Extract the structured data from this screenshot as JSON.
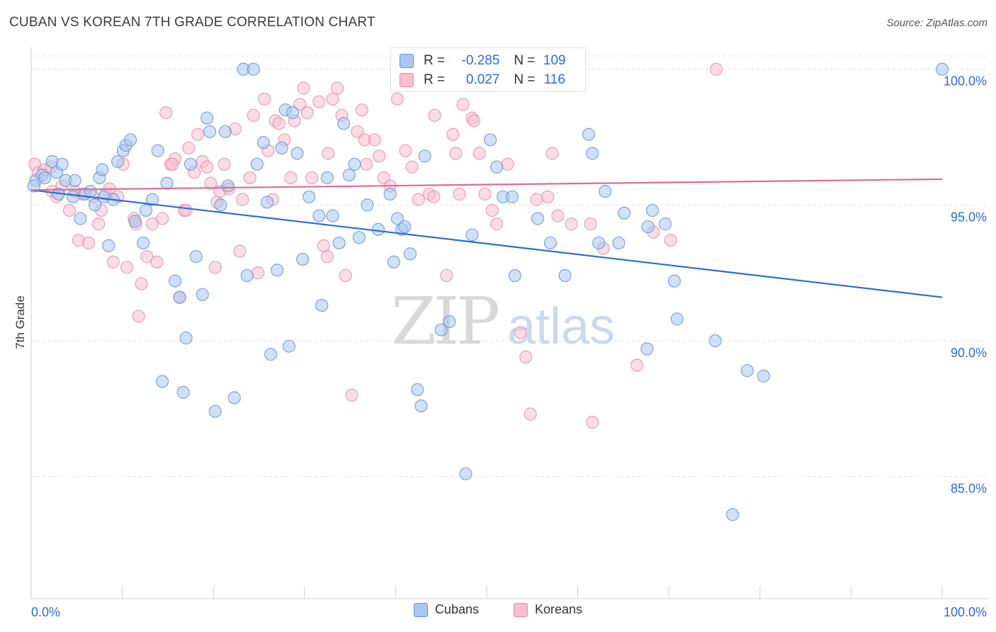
{
  "title": "CUBAN VS KOREAN 7TH GRADE CORRELATION CHART",
  "source": "Source: ZipAtlas.com",
  "watermark": {
    "zip": "ZIP",
    "atlas": "atlas"
  },
  "legend": {
    "rows": [
      {
        "r_label": "R =",
        "r_value": "-0.285",
        "n_label": "N =",
        "n_value": "109"
      },
      {
        "r_label": "R =",
        "r_value": "0.027",
        "n_label": "N =",
        "n_value": "116"
      }
    ]
  },
  "bottom_legend": {
    "cubans": "Cubans",
    "koreans": "Koreans"
  },
  "colors": {
    "cubans_fill": "#a9c7ef",
    "cubans_stroke": "#5b93dd",
    "cubans_line": "#2b6dd0",
    "koreans_fill": "#f6bfd0",
    "koreans_stroke": "#e88aa8",
    "koreans_line": "#e06b94",
    "axis_label": "#2b6dd0",
    "grid": "#e3e3e3"
  },
  "chart_data": {
    "type": "scatter",
    "title": "CUBAN VS KOREAN 7TH GRADE CORRELATION CHART",
    "xlabel": "",
    "ylabel": "7th Grade",
    "xlim": [
      0,
      100
    ],
    "ylim": [
      80.5,
      100.8
    ],
    "x_tick_labels": [
      "0.0%",
      "100.0%"
    ],
    "y_ticks": [
      85,
      90,
      95,
      100
    ],
    "y_tick_labels": [
      "85.0%",
      "90.0%",
      "95.0%",
      "100.0%"
    ],
    "grid": true,
    "legend_position": "top-center",
    "series": [
      {
        "name": "Cubans",
        "r": -0.285,
        "n": 109,
        "trend": {
          "x": [
            0,
            100
          ],
          "y": [
            95.55,
            91.6
          ]
        },
        "points": [
          [
            0.5,
            95.9
          ],
          [
            1.2,
            96.1
          ],
          [
            1.5,
            96.0
          ],
          [
            2.3,
            96.6
          ],
          [
            2.8,
            96.2
          ],
          [
            3.4,
            96.5
          ],
          [
            3.8,
            95.9
          ],
          [
            4.6,
            95.3
          ],
          [
            4.8,
            95.9
          ],
          [
            5.4,
            94.5
          ],
          [
            5.9,
            95.4
          ],
          [
            6.5,
            95.5
          ],
          [
            7.0,
            95.0
          ],
          [
            7.5,
            96.0
          ],
          [
            7.8,
            96.3
          ],
          [
            8.5,
            93.5
          ],
          [
            9.0,
            95.2
          ],
          [
            9.5,
            96.6
          ],
          [
            10.1,
            97.0
          ],
          [
            10.4,
            97.2
          ],
          [
            10.9,
            97.4
          ],
          [
            11.4,
            94.4
          ],
          [
            12.3,
            93.6
          ],
          [
            12.6,
            94.8
          ],
          [
            13.3,
            95.2
          ],
          [
            13.9,
            97.0
          ],
          [
            14.4,
            88.5
          ],
          [
            14.9,
            95.8
          ],
          [
            15.8,
            92.2
          ],
          [
            16.3,
            91.6
          ],
          [
            16.7,
            88.1
          ],
          [
            17.0,
            90.1
          ],
          [
            17.5,
            96.5
          ],
          [
            18.1,
            93.1
          ],
          [
            18.8,
            91.7
          ],
          [
            19.3,
            98.2
          ],
          [
            19.6,
            97.7
          ],
          [
            20.2,
            87.4
          ],
          [
            20.8,
            95.0
          ],
          [
            21.3,
            97.7
          ],
          [
            21.6,
            95.7
          ],
          [
            22.3,
            87.9
          ],
          [
            23.3,
            100.0
          ],
          [
            23.7,
            92.4
          ],
          [
            24.4,
            100.0
          ],
          [
            24.8,
            96.5
          ],
          [
            25.5,
            97.3
          ],
          [
            25.9,
            95.1
          ],
          [
            26.3,
            89.5
          ],
          [
            27.0,
            92.6
          ],
          [
            27.5,
            97.1
          ],
          [
            27.9,
            98.5
          ],
          [
            28.3,
            89.8
          ],
          [
            28.7,
            98.4
          ],
          [
            29.2,
            96.9
          ],
          [
            29.8,
            93.0
          ],
          [
            30.5,
            95.3
          ],
          [
            31.6,
            94.6
          ],
          [
            31.9,
            91.3
          ],
          [
            32.5,
            96.0
          ],
          [
            33.1,
            94.6
          ],
          [
            33.8,
            93.6
          ],
          [
            34.3,
            98.0
          ],
          [
            34.9,
            96.1
          ],
          [
            35.5,
            96.5
          ],
          [
            36.0,
            93.8
          ],
          [
            36.9,
            95.0
          ],
          [
            38.1,
            94.1
          ],
          [
            39.4,
            95.4
          ],
          [
            39.8,
            92.9
          ],
          [
            40.2,
            94.5
          ],
          [
            40.7,
            94.1
          ],
          [
            41.0,
            94.2
          ],
          [
            41.6,
            93.2
          ],
          [
            42.4,
            88.2
          ],
          [
            42.8,
            87.6
          ],
          [
            43.2,
            96.8
          ],
          [
            45.0,
            90.4
          ],
          [
            45.9,
            90.7
          ],
          [
            47.7,
            85.1
          ],
          [
            48.4,
            93.9
          ],
          [
            50.4,
            97.4
          ],
          [
            51.1,
            96.4
          ],
          [
            51.8,
            95.3
          ],
          [
            52.8,
            95.3
          ],
          [
            53.1,
            92.4
          ],
          [
            55.6,
            94.5
          ],
          [
            57.0,
            93.6
          ],
          [
            58.6,
            92.4
          ],
          [
            61.2,
            97.6
          ],
          [
            61.6,
            96.9
          ],
          [
            62.3,
            93.6
          ],
          [
            63.0,
            95.5
          ],
          [
            64.5,
            93.6
          ],
          [
            65.1,
            94.7
          ],
          [
            67.6,
            89.7
          ],
          [
            67.7,
            94.2
          ],
          [
            68.2,
            94.8
          ],
          [
            69.6,
            94.3
          ],
          [
            70.6,
            92.2
          ],
          [
            70.9,
            90.8
          ],
          [
            75.1,
            90.0
          ],
          [
            77.0,
            83.6
          ],
          [
            78.6,
            88.9
          ],
          [
            80.4,
            88.7
          ],
          [
            100.0,
            100.0
          ],
          [
            0.3,
            95.7
          ],
          [
            3.0,
            95.4
          ],
          [
            8.0,
            95.3
          ]
        ]
      },
      {
        "name": "Koreans",
        "r": 0.027,
        "n": 116,
        "trend": {
          "x": [
            0,
            100
          ],
          "y": [
            95.55,
            95.95
          ]
        },
        "points": [
          [
            0.4,
            96.5
          ],
          [
            0.8,
            96.2
          ],
          [
            1.5,
            96.3
          ],
          [
            2.3,
            95.5
          ],
          [
            2.8,
            95.3
          ],
          [
            3.4,
            95.7
          ],
          [
            4.2,
            94.8
          ],
          [
            4.8,
            95.5
          ],
          [
            5.2,
            93.7
          ],
          [
            5.6,
            95.4
          ],
          [
            6.3,
            93.6
          ],
          [
            6.8,
            95.3
          ],
          [
            7.4,
            94.3
          ],
          [
            7.7,
            94.8
          ],
          [
            8.2,
            95.4
          ],
          [
            8.6,
            95.6
          ],
          [
            9.0,
            92.9
          ],
          [
            9.5,
            95.3
          ],
          [
            10.1,
            96.5
          ],
          [
            10.5,
            92.7
          ],
          [
            11.3,
            94.5
          ],
          [
            11.5,
            94.3
          ],
          [
            11.8,
            90.9
          ],
          [
            12.1,
            92.1
          ],
          [
            12.7,
            93.1
          ],
          [
            13.3,
            94.3
          ],
          [
            13.8,
            92.9
          ],
          [
            14.4,
            94.5
          ],
          [
            14.8,
            98.4
          ],
          [
            15.3,
            96.5
          ],
          [
            15.8,
            96.7
          ],
          [
            16.3,
            91.6
          ],
          [
            16.8,
            94.8
          ],
          [
            17.3,
            97.1
          ],
          [
            17.9,
            96.2
          ],
          [
            18.3,
            97.6
          ],
          [
            18.8,
            96.6
          ],
          [
            19.3,
            96.4
          ],
          [
            19.7,
            95.8
          ],
          [
            20.2,
            92.7
          ],
          [
            20.7,
            95.5
          ],
          [
            21.2,
            96.5
          ],
          [
            21.7,
            95.6
          ],
          [
            22.4,
            97.8
          ],
          [
            22.9,
            93.3
          ],
          [
            23.2,
            95.2
          ],
          [
            24.0,
            96.0
          ],
          [
            24.4,
            98.3
          ],
          [
            24.9,
            92.5
          ],
          [
            25.6,
            98.9
          ],
          [
            26.0,
            97.0
          ],
          [
            26.5,
            95.2
          ],
          [
            26.8,
            98.1
          ],
          [
            27.2,
            98.0
          ],
          [
            27.8,
            97.4
          ],
          [
            28.5,
            96.0
          ],
          [
            28.9,
            98.1
          ],
          [
            29.5,
            98.7
          ],
          [
            29.9,
            99.3
          ],
          [
            30.3,
            98.4
          ],
          [
            30.8,
            96.0
          ],
          [
            31.6,
            98.8
          ],
          [
            32.1,
            93.5
          ],
          [
            32.5,
            93.1
          ],
          [
            33.1,
            98.9
          ],
          [
            33.6,
            99.3
          ],
          [
            34.1,
            98.3
          ],
          [
            34.5,
            92.4
          ],
          [
            35.2,
            88.0
          ],
          [
            35.8,
            97.7
          ],
          [
            36.3,
            98.5
          ],
          [
            36.6,
            97.4
          ],
          [
            36.8,
            96.5
          ],
          [
            37.7,
            97.4
          ],
          [
            38.2,
            96.8
          ],
          [
            38.7,
            96.0
          ],
          [
            39.4,
            95.7
          ],
          [
            40.2,
            98.9
          ],
          [
            41.1,
            97.0
          ],
          [
            41.8,
            96.4
          ],
          [
            42.5,
            95.2
          ],
          [
            43.7,
            95.4
          ],
          [
            44.3,
            98.3
          ],
          [
            45.6,
            92.4
          ],
          [
            46.3,
            97.6
          ],
          [
            46.6,
            96.9
          ],
          [
            47.0,
            95.4
          ],
          [
            47.4,
            98.7
          ],
          [
            48.4,
            98.2
          ],
          [
            48.6,
            98.1
          ],
          [
            49.2,
            96.9
          ],
          [
            49.8,
            95.4
          ],
          [
            50.6,
            94.8
          ],
          [
            51.1,
            94.3
          ],
          [
            52.3,
            96.5
          ],
          [
            53.7,
            90.3
          ],
          [
            54.3,
            89.4
          ],
          [
            54.8,
            87.3
          ],
          [
            55.5,
            95.2
          ],
          [
            57.2,
            96.9
          ],
          [
            57.8,
            94.6
          ],
          [
            59.3,
            94.3
          ],
          [
            61.4,
            94.3
          ],
          [
            62.8,
            93.4
          ],
          [
            66.5,
            89.1
          ],
          [
            68.3,
            94.0
          ],
          [
            70.2,
            93.7
          ],
          [
            75.2,
            100.0
          ],
          [
            61.6,
            87.0
          ],
          [
            44.2,
            95.3
          ],
          [
            32.6,
            96.9
          ],
          [
            15.5,
            96.5
          ],
          [
            17.0,
            94.8
          ],
          [
            20.4,
            95.1
          ],
          [
            56.7,
            95.3
          ],
          [
            2.2,
            96.4
          ]
        ]
      }
    ]
  }
}
